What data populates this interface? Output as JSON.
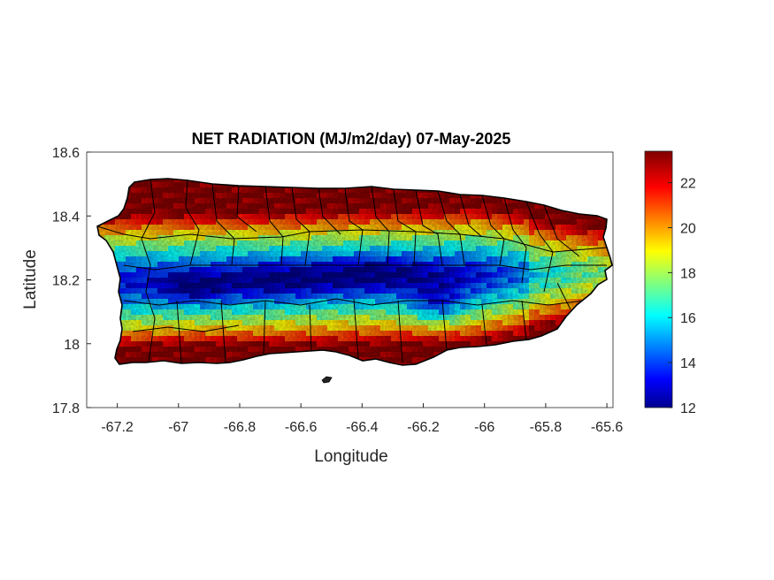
{
  "chart_data": {
    "type": "heatmap",
    "title": "NET RADIATION (MJ/m2/day) 07-May-2025",
    "xlabel": "Longitude",
    "ylabel": "Latitude",
    "xlim": [
      -67.3,
      -65.58
    ],
    "ylim": [
      17.8,
      18.6
    ],
    "x_ticks": [
      -67.2,
      -67,
      -66.8,
      -66.6,
      -66.4,
      -66.2,
      -66,
      -65.8,
      -65.6
    ],
    "x_tick_labels": [
      "-67.2",
      "-67",
      "-66.8",
      "-66.6",
      "-66.4",
      "-66.2",
      "-66",
      "-65.8",
      "-65.6"
    ],
    "y_ticks": [
      17.8,
      18,
      18.2,
      18.4,
      18.6
    ],
    "y_tick_labels": [
      "17.8",
      "18",
      "18.2",
      "18.4",
      "18.6"
    ],
    "colorbar": {
      "colormap": "jet",
      "range": [
        12,
        23.4
      ],
      "ticks": [
        12,
        14,
        16,
        18,
        20,
        22
      ],
      "tick_labels": [
        "12",
        "14",
        "16",
        "18",
        "20",
        "22"
      ]
    },
    "field_description": "Values highest (~22-23) along north and south coasts, lowest (~12-15) across central interior mountains near -66.6 to -66.1 longitude, 18.1-18.25 latitude",
    "colors": {
      "low": "#00008f",
      "mid": "#00ffff",
      "high": "#800000"
    }
  }
}
